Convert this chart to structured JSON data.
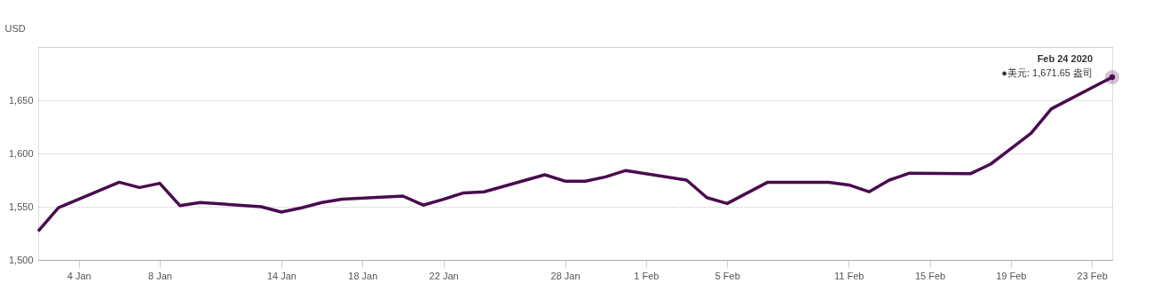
{
  "chart_data": {
    "type": "line",
    "ylabel": "USD",
    "x": [
      "2020-01-02",
      "2020-01-03",
      "2020-01-06",
      "2020-01-07",
      "2020-01-08",
      "2020-01-09",
      "2020-01-10",
      "2020-01-13",
      "2020-01-14",
      "2020-01-15",
      "2020-01-16",
      "2020-01-17",
      "2020-01-20",
      "2020-01-21",
      "2020-01-22",
      "2020-01-23",
      "2020-01-24",
      "2020-01-27",
      "2020-01-28",
      "2020-01-29",
      "2020-01-30",
      "2020-01-31",
      "2020-02-03",
      "2020-02-04",
      "2020-02-05",
      "2020-02-06",
      "2020-02-07",
      "2020-02-10",
      "2020-02-11",
      "2020-02-12",
      "2020-02-13",
      "2020-02-14",
      "2020-02-17",
      "2020-02-18",
      "2020-02-19",
      "2020-02-20",
      "2020-02-21",
      "2020-02-24"
    ],
    "series": [
      {
        "color": "#4a0b4f",
        "values": [
          1527,
          1549,
          1573,
          1568,
          1572,
          1551,
          1554,
          1550,
          1545,
          1549,
          1554,
          1557,
          1560,
          1551.5,
          1557,
          1563,
          1564,
          1580,
          1574,
          1574,
          1578,
          1584,
          1575,
          1558.5,
          1553,
          1563,
          1573,
          1573,
          1570.5,
          1564,
          1575,
          1581.5,
          1581,
          1590,
          1604.5,
          1619,
          1642,
          1671.65
        ]
      }
    ],
    "xlim": [
      "2020-01-02",
      "2020-02-24"
    ],
    "xticks": [
      {
        "value": "2020-01-04",
        "label": "4 Jan"
      },
      {
        "value": "2020-01-08",
        "label": "8 Jan"
      },
      {
        "value": "2020-01-14",
        "label": "14 Jan"
      },
      {
        "value": "2020-01-18",
        "label": "18 Jan"
      },
      {
        "value": "2020-01-22",
        "label": "22 Jan"
      },
      {
        "value": "2020-01-28",
        "label": "28 Jan"
      },
      {
        "value": "2020-02-01",
        "label": "1 Feb"
      },
      {
        "value": "2020-02-05",
        "label": "5 Feb"
      },
      {
        "value": "2020-02-11",
        "label": "11 Feb"
      },
      {
        "value": "2020-02-15",
        "label": "15 Feb"
      },
      {
        "value": "2020-02-19",
        "label": "19 Feb"
      },
      {
        "value": "2020-02-23",
        "label": "23 Feb"
      }
    ],
    "ylim": [
      1500,
      1700
    ],
    "yticks": [
      {
        "value": 1500,
        "label": "1,500"
      },
      {
        "value": 1550,
        "label": "1,550"
      },
      {
        "value": 1600,
        "label": "1,600"
      },
      {
        "value": 1650,
        "label": "1,650"
      },
      {
        "value": 1700,
        "label": null
      }
    ],
    "grid": "y",
    "marker": "none",
    "line_style": "solid",
    "annotations": [
      {
        "text": "Feb 24 2020",
        "x": "2020-02-24",
        "y": 1671.65
      },
      {
        "text": "●美元: 1,671.65 盎司",
        "x": "2020-02-24",
        "y": 1671.65
      }
    ]
  }
}
